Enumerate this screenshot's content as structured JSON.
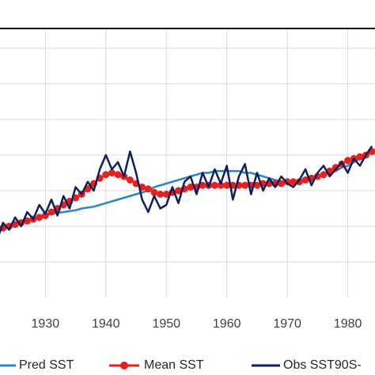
{
  "chart_data": {
    "type": "line",
    "x": [
      1922,
      1923,
      1924,
      1925,
      1926,
      1927,
      1928,
      1929,
      1930,
      1931,
      1932,
      1933,
      1934,
      1935,
      1936,
      1937,
      1938,
      1939,
      1940,
      1941,
      1942,
      1943,
      1944,
      1945,
      1946,
      1947,
      1948,
      1949,
      1950,
      1951,
      1952,
      1953,
      1954,
      1955,
      1956,
      1957,
      1958,
      1959,
      1960,
      1961,
      1962,
      1963,
      1964,
      1965,
      1966,
      1967,
      1968,
      1969,
      1970,
      1971,
      1972,
      1973,
      1974,
      1975,
      1976,
      1977,
      1978,
      1979,
      1980,
      1981,
      1982,
      1983,
      1984
    ],
    "series": [
      {
        "name": "Pred SST",
        "color": "#2e86c8",
        "marker": false,
        "values": [
          -0.22,
          -0.21,
          -0.2,
          -0.19,
          -0.18,
          -0.17,
          -0.16,
          -0.15,
          -0.14,
          -0.13,
          -0.125,
          -0.12,
          -0.115,
          -0.11,
          -0.1,
          -0.095,
          -0.09,
          -0.08,
          -0.07,
          -0.06,
          -0.05,
          -0.04,
          -0.03,
          -0.02,
          -0.01,
          0.0,
          0.02,
          0.03,
          0.04,
          0.05,
          0.06,
          0.07,
          0.08,
          0.09,
          0.1,
          0.1,
          0.11,
          0.11,
          0.11,
          0.11,
          0.11,
          0.1,
          0.1,
          0.09,
          0.08,
          0.07,
          0.06,
          0.05,
          0.05,
          0.05,
          0.05,
          0.06,
          0.07,
          0.08,
          0.09,
          0.1,
          0.11,
          0.13,
          0.14,
          0.16,
          0.18,
          0.2,
          0.22
        ]
      },
      {
        "name": "Mean SST",
        "color": "#e8201c",
        "marker": true,
        "values": [
          -0.22,
          -0.21,
          -0.2,
          -0.19,
          -0.18,
          -0.17,
          -0.16,
          -0.15,
          -0.14,
          -0.12,
          -0.1,
          -0.08,
          -0.06,
          -0.04,
          -0.02,
          0.01,
          0.04,
          0.07,
          0.09,
          0.1,
          0.09,
          0.08,
          0.06,
          0.04,
          0.02,
          0.01,
          -0.01,
          -0.02,
          -0.02,
          -0.01,
          0.0,
          0.01,
          0.02,
          0.02,
          0.03,
          0.03,
          0.03,
          0.03,
          0.03,
          0.03,
          0.03,
          0.03,
          0.03,
          0.03,
          0.04,
          0.04,
          0.04,
          0.04,
          0.05,
          0.05,
          0.05,
          0.06,
          0.07,
          0.08,
          0.09,
          0.11,
          0.13,
          0.15,
          0.17,
          0.18,
          0.19,
          0.2,
          0.22
        ]
      },
      {
        "name": "Obs SST90S-",
        "color": "#0d1f5c",
        "marker": false,
        "values": [
          -0.28,
          -0.18,
          -0.22,
          -0.15,
          -0.2,
          -0.12,
          -0.16,
          -0.08,
          -0.13,
          -0.05,
          -0.14,
          -0.03,
          -0.1,
          0.02,
          -0.02,
          0.05,
          0.0,
          0.12,
          0.2,
          0.12,
          0.16,
          0.08,
          0.22,
          0.1,
          -0.05,
          -0.12,
          -0.03,
          -0.1,
          -0.08,
          0.02,
          -0.07,
          0.05,
          0.08,
          -0.02,
          0.1,
          0.02,
          0.12,
          0.04,
          0.14,
          -0.05,
          0.08,
          0.15,
          -0.02,
          0.1,
          0.0,
          0.07,
          0.02,
          0.08,
          0.04,
          0.02,
          0.06,
          0.12,
          0.03,
          0.1,
          0.14,
          0.08,
          0.12,
          0.16,
          0.1,
          0.18,
          0.14,
          0.2,
          0.25
        ]
      }
    ],
    "xlim": [
      1922.5,
      1984.5
    ],
    "xticks": [
      1920,
      1930,
      1940,
      1950,
      1960,
      1970,
      1980
    ],
    "ylim": [
      -0.6,
      1.0
    ],
    "yticks": [
      -0.4,
      -0.2,
      0,
      0.2,
      0.4,
      0.6,
      0.8
    ],
    "grid": true
  }
}
